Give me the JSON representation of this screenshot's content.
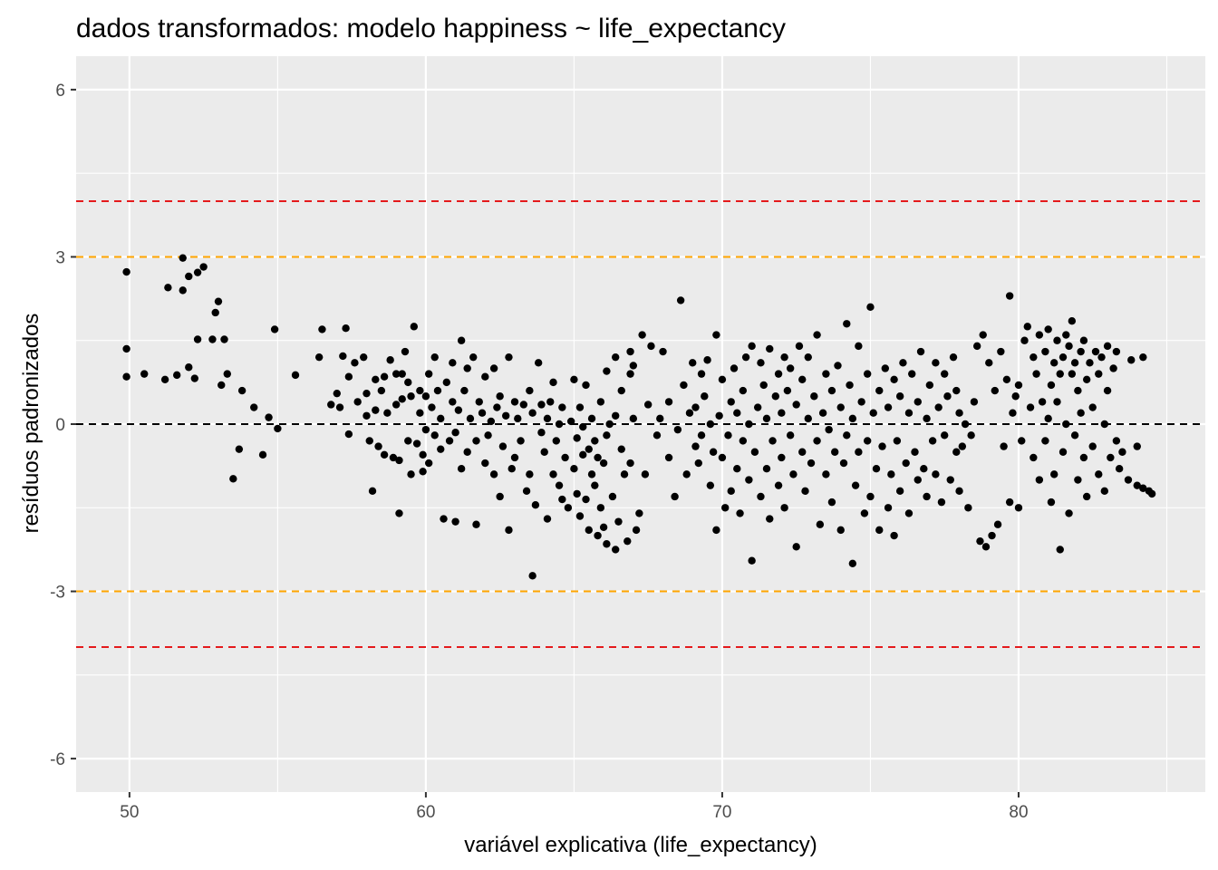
{
  "chart_data": {
    "type": "scatter",
    "title": "dados transformados: modelo happiness ~ life_expectancy",
    "xlabel": "variável explicativa (life_expectancy)",
    "ylabel": "resíduos padronizados",
    "xlim": [
      48.2,
      86.3
    ],
    "ylim": [
      -6.6,
      6.6
    ],
    "x_ticks": [
      50,
      60,
      70,
      80
    ],
    "x_tick_labels": [
      "50",
      "60",
      "70",
      "80"
    ],
    "x_minor_ticks": [
      55,
      65,
      75,
      85
    ],
    "y_ticks": [
      -6,
      -3,
      0,
      3,
      6
    ],
    "y_tick_labels": [
      "-6",
      "-3",
      "0",
      "3",
      "6"
    ],
    "y_minor_ticks": [
      -4.5,
      -1.5,
      1.5,
      4.5
    ],
    "grid": true,
    "reference_lines": [
      {
        "y": 4,
        "color": "#e41a1c",
        "style": "dashed"
      },
      {
        "y": 3,
        "color": "#ffa500",
        "style": "dashed"
      },
      {
        "y": 0,
        "color": "#000000",
        "style": "dashed"
      },
      {
        "y": -3,
        "color": "#ffa500",
        "style": "dashed"
      },
      {
        "y": -4,
        "color": "#e41a1c",
        "style": "dashed"
      }
    ],
    "point_color": "#000000",
    "panel_background": "#ebebeb",
    "points": [
      [
        49.9,
        2.73
      ],
      [
        49.9,
        1.35
      ],
      [
        49.9,
        0.85
      ],
      [
        50.5,
        0.9
      ],
      [
        51.2,
        0.8
      ],
      [
        51.3,
        2.45
      ],
      [
        51.6,
        0.88
      ],
      [
        51.8,
        2.98
      ],
      [
        51.8,
        2.4
      ],
      [
        52,
        2.65
      ],
      [
        52,
        1.02
      ],
      [
        52.2,
        0.82
      ],
      [
        52.3,
        1.52
      ],
      [
        52.3,
        2.72
      ],
      [
        52.5,
        2.82
      ],
      [
        52.8,
        1.52
      ],
      [
        52.9,
        2.0
      ],
      [
        53,
        2.2
      ],
      [
        53.1,
        0.7
      ],
      [
        53.2,
        1.52
      ],
      [
        53.3,
        0.9
      ],
      [
        53.5,
        -0.98
      ],
      [
        53.7,
        -0.45
      ],
      [
        53.8,
        0.6
      ],
      [
        54.2,
        0.3
      ],
      [
        54.5,
        -0.55
      ],
      [
        54.7,
        0.12
      ],
      [
        55,
        -0.08
      ],
      [
        55.6,
        0.88
      ],
      [
        54.9,
        1.7
      ],
      [
        56.4,
        1.2
      ],
      [
        56.5,
        1.7
      ],
      [
        56.8,
        0.35
      ],
      [
        57,
        0.55
      ],
      [
        57.1,
        0.3
      ],
      [
        57.3,
        1.72
      ],
      [
        57.2,
        1.22
      ],
      [
        57.4,
        0.85
      ],
      [
        57.4,
        -0.18
      ],
      [
        57.6,
        1.1
      ],
      [
        57.7,
        0.4
      ],
      [
        57.9,
        1.2
      ],
      [
        58,
        0.55
      ],
      [
        58,
        0.15
      ],
      [
        58.1,
        -0.3
      ],
      [
        58.2,
        -1.2
      ],
      [
        58.3,
        0.8
      ],
      [
        58.3,
        0.25
      ],
      [
        58.4,
        -0.4
      ],
      [
        58.5,
        0.6
      ],
      [
        58.6,
        -0.55
      ],
      [
        58.6,
        0.85
      ],
      [
        58.7,
        0.2
      ],
      [
        58.8,
        1.15
      ],
      [
        58.9,
        -0.6
      ],
      [
        59,
        0.9
      ],
      [
        59,
        0.35
      ],
      [
        59.1,
        -0.65
      ],
      [
        59.1,
        -1.6
      ],
      [
        59.2,
        0.45
      ],
      [
        59.2,
        0.9
      ],
      [
        59.3,
        1.3
      ],
      [
        59.4,
        0.75
      ],
      [
        59.4,
        -0.3
      ],
      [
        59.5,
        0.5
      ],
      [
        59.5,
        -0.9
      ],
      [
        59.6,
        1.75
      ],
      [
        59.7,
        -0.35
      ],
      [
        59.8,
        0.2
      ],
      [
        59.8,
        0.6
      ],
      [
        59.9,
        -0.55
      ],
      [
        59.9,
        -0.85
      ],
      [
        60,
        0.5
      ],
      [
        60,
        -0.1
      ],
      [
        60.1,
        0.9
      ],
      [
        60.1,
        -0.7
      ],
      [
        60.2,
        0.3
      ],
      [
        60.3,
        1.2
      ],
      [
        60.3,
        -0.2
      ],
      [
        60.4,
        0.6
      ],
      [
        60.5,
        -0.45
      ],
      [
        60.5,
        0.1
      ],
      [
        60.6,
        -1.7
      ],
      [
        60.7,
        0.75
      ],
      [
        60.8,
        -0.3
      ],
      [
        60.9,
        1.1
      ],
      [
        60.9,
        0.4
      ],
      [
        61,
        -1.75
      ],
      [
        61,
        -0.15
      ],
      [
        61.1,
        0.25
      ],
      [
        61.2,
        1.5
      ],
      [
        61.2,
        -0.8
      ],
      [
        61.3,
        0.6
      ],
      [
        61.4,
        1.0
      ],
      [
        61.4,
        -0.5
      ],
      [
        61.5,
        0.1
      ],
      [
        61.6,
        1.2
      ],
      [
        61.7,
        -1.8
      ],
      [
        61.7,
        -0.3
      ],
      [
        61.8,
        0.4
      ],
      [
        61.9,
        0.2
      ],
      [
        62,
        -0.7
      ],
      [
        62,
        0.85
      ],
      [
        62.1,
        -0.2
      ],
      [
        62.2,
        0.05
      ],
      [
        62.3,
        -0.9
      ],
      [
        62.3,
        1.0
      ],
      [
        62.4,
        0.3
      ],
      [
        62.5,
        -1.3
      ],
      [
        62.5,
        0.5
      ],
      [
        62.6,
        -0.4
      ],
      [
        62.7,
        0.15
      ],
      [
        62.8,
        -1.9
      ],
      [
        62.8,
        1.2
      ],
      [
        62.9,
        -0.8
      ],
      [
        63,
        0.4
      ],
      [
        63,
        -0.6
      ],
      [
        63.1,
        0.1
      ],
      [
        63.2,
        -0.3
      ],
      [
        63.3,
        0.35
      ],
      [
        63.4,
        -1.2
      ],
      [
        63.5,
        0.6
      ],
      [
        63.5,
        -0.9
      ],
      [
        63.6,
        0.2
      ],
      [
        63.7,
        -1.45
      ],
      [
        63.8,
        1.1
      ],
      [
        63.9,
        0.35
      ],
      [
        63.9,
        -0.15
      ],
      [
        64,
        -0.5
      ],
      [
        64.1,
        0.1
      ],
      [
        64.1,
        -1.7
      ],
      [
        64.2,
        0.4
      ],
      [
        64.3,
        -0.9
      ],
      [
        64.3,
        0.75
      ],
      [
        64.4,
        -0.3
      ],
      [
        64.5,
        -1.1
      ],
      [
        64.5,
        0.0
      ],
      [
        64.6,
        -1.35
      ],
      [
        64.6,
        0.3
      ],
      [
        64.7,
        -0.6
      ],
      [
        64.8,
        -1.5
      ],
      [
        64.9,
        0.05
      ],
      [
        63.6,
        -2.72
      ],
      [
        65,
        0.8
      ],
      [
        65,
        -0.8
      ],
      [
        65.1,
        -0.25
      ],
      [
        65.1,
        -1.25
      ],
      [
        65.2,
        -1.65
      ],
      [
        65.2,
        0.3
      ],
      [
        65.3,
        -0.55
      ],
      [
        65.3,
        -0.05
      ],
      [
        65.4,
        -1.35
      ],
      [
        65.4,
        0.7
      ],
      [
        65.5,
        -0.45
      ],
      [
        65.5,
        -1.9
      ],
      [
        65.6,
        -0.9
      ],
      [
        65.6,
        0.1
      ],
      [
        65.7,
        -0.3
      ],
      [
        65.7,
        -1.1
      ],
      [
        65.8,
        -0.6
      ],
      [
        65.8,
        -2.0
      ],
      [
        65.9,
        -1.5
      ],
      [
        65.9,
        0.4
      ],
      [
        66,
        -0.7
      ],
      [
        66,
        -1.85
      ],
      [
        66.1,
        -0.2
      ],
      [
        66.1,
        -2.15
      ],
      [
        66.2,
        0.0
      ],
      [
        66.3,
        -1.3
      ],
      [
        66.4,
        -2.25
      ],
      [
        66.4,
        0.15
      ],
      [
        66.5,
        -1.75
      ],
      [
        66.6,
        -0.45
      ],
      [
        66.7,
        -0.9
      ],
      [
        66.8,
        -2.1
      ],
      [
        66.9,
        -0.7
      ],
      [
        66.9,
        1.3
      ],
      [
        67,
        0.1
      ],
      [
        67.1,
        -1.9
      ],
      [
        67.2,
        -1.6
      ],
      [
        67.3,
        1.6
      ],
      [
        67.4,
        -0.9
      ],
      [
        67.5,
        0.35
      ],
      [
        66.1,
        0.95
      ],
      [
        66.4,
        1.2
      ],
      [
        66.6,
        0.6
      ],
      [
        66.9,
        0.9
      ],
      [
        67,
        1.05
      ],
      [
        67.6,
        1.4
      ],
      [
        67.8,
        -0.2
      ],
      [
        67.9,
        0.1
      ],
      [
        68,
        1.3
      ],
      [
        68.2,
        -0.6
      ],
      [
        68.2,
        0.4
      ],
      [
        68.4,
        -1.3
      ],
      [
        68.5,
        -0.1
      ],
      [
        68.6,
        2.22
      ],
      [
        68.7,
        0.7
      ],
      [
        68.8,
        -0.9
      ],
      [
        68.9,
        0.2
      ],
      [
        69,
        1.1
      ],
      [
        69.1,
        -0.4
      ],
      [
        69.1,
        0.3
      ],
      [
        69.2,
        -0.7
      ],
      [
        69.3,
        0.9
      ],
      [
        69.3,
        -0.2
      ],
      [
        69.4,
        0.5
      ],
      [
        69.5,
        1.15
      ],
      [
        69.6,
        -1.1
      ],
      [
        69.6,
        0.0
      ],
      [
        69.7,
        -0.5
      ],
      [
        69.8,
        1.6
      ],
      [
        69.8,
        -1.9
      ],
      [
        69.9,
        0.15
      ],
      [
        70,
        -0.6
      ],
      [
        70,
        0.8
      ],
      [
        70.1,
        -1.5
      ],
      [
        70.2,
        -0.2
      ],
      [
        70.3,
        0.4
      ],
      [
        70.3,
        -1.2
      ],
      [
        70.4,
        1.0
      ],
      [
        70.5,
        -0.8
      ],
      [
        70.5,
        0.2
      ],
      [
        70.6,
        -1.6
      ],
      [
        70.7,
        0.6
      ],
      [
        70.7,
        -0.3
      ],
      [
        70.8,
        1.2
      ],
      [
        70.9,
        -1.0
      ],
      [
        70.9,
        0.0
      ],
      [
        71,
        -2.45
      ],
      [
        71,
        1.4
      ],
      [
        71.1,
        -0.5
      ],
      [
        71.2,
        0.3
      ],
      [
        71.3,
        -1.3
      ],
      [
        71.3,
        1.1
      ],
      [
        71.4,
        0.7
      ],
      [
        71.5,
        -0.8
      ],
      [
        71.5,
        0.1
      ],
      [
        71.6,
        -1.7
      ],
      [
        71.6,
        1.35
      ],
      [
        71.7,
        -0.3
      ],
      [
        71.8,
        0.5
      ],
      [
        71.9,
        -1.1
      ],
      [
        71.9,
        0.9
      ],
      [
        72,
        -0.6
      ],
      [
        72,
        0.2
      ],
      [
        72.1,
        1.2
      ],
      [
        72.1,
        -1.5
      ],
      [
        72.2,
        0.6
      ],
      [
        72.3,
        -0.2
      ],
      [
        72.3,
        1.0
      ],
      [
        72.4,
        -0.9
      ],
      [
        72.5,
        -2.2
      ],
      [
        72.5,
        0.35
      ],
      [
        72.6,
        1.4
      ],
      [
        72.7,
        -0.5
      ],
      [
        72.7,
        0.8
      ],
      [
        72.8,
        -1.2
      ],
      [
        72.9,
        0.1
      ],
      [
        72.9,
        1.2
      ],
      [
        73,
        -0.7
      ],
      [
        73.1,
        0.5
      ],
      [
        73.2,
        -0.3
      ],
      [
        73.2,
        1.6
      ],
      [
        73.3,
        -1.8
      ],
      [
        73.4,
        0.2
      ],
      [
        73.5,
        -0.9
      ],
      [
        73.5,
        0.9
      ],
      [
        73.6,
        -0.1
      ],
      [
        73.7,
        0.6
      ],
      [
        73.7,
        -1.4
      ],
      [
        73.8,
        -0.5
      ],
      [
        73.9,
        1.05
      ],
      [
        74,
        0.3
      ],
      [
        74,
        -1.9
      ],
      [
        74.1,
        -0.7
      ],
      [
        74.2,
        1.8
      ],
      [
        74.2,
        -0.2
      ],
      [
        74.3,
        0.7
      ],
      [
        74.4,
        -2.5
      ],
      [
        74.4,
        0.1
      ],
      [
        74.5,
        -1.1
      ],
      [
        74.6,
        1.4
      ],
      [
        74.6,
        -0.5
      ],
      [
        74.7,
        0.4
      ],
      [
        74.8,
        -1.6
      ],
      [
        74.9,
        0.9
      ],
      [
        74.9,
        -0.3
      ],
      [
        75,
        2.1
      ],
      [
        75,
        -1.3
      ],
      [
        75.1,
        0.2
      ],
      [
        75.2,
        -0.8
      ],
      [
        75.3,
        -1.9
      ],
      [
        75.3,
        0.6
      ],
      [
        75.4,
        -0.4
      ],
      [
        75.5,
        1.0
      ],
      [
        75.6,
        -1.5
      ],
      [
        75.6,
        0.3
      ],
      [
        75.7,
        -0.9
      ],
      [
        75.8,
        0.8
      ],
      [
        75.8,
        -2.0
      ],
      [
        75.9,
        -0.3
      ],
      [
        76,
        0.5
      ],
      [
        76,
        -1.2
      ],
      [
        76.1,
        1.1
      ],
      [
        76.2,
        -0.7
      ],
      [
        76.3,
        0.2
      ],
      [
        76.3,
        -1.6
      ],
      [
        76.4,
        0.9
      ],
      [
        76.5,
        -0.5
      ],
      [
        76.6,
        -1.0
      ],
      [
        76.6,
        0.4
      ],
      [
        76.7,
        1.3
      ],
      [
        76.8,
        -0.8
      ],
      [
        76.9,
        0.1
      ],
      [
        76.9,
        -1.3
      ],
      [
        77,
        0.7
      ],
      [
        77.1,
        -0.3
      ],
      [
        77.2,
        1.1
      ],
      [
        77.2,
        -0.9
      ],
      [
        77.3,
        0.3
      ],
      [
        77.4,
        -1.4
      ],
      [
        77.5,
        0.9
      ],
      [
        77.5,
        -0.2
      ],
      [
        77.6,
        0.5
      ],
      [
        77.7,
        -1.0
      ],
      [
        77.8,
        1.2
      ],
      [
        77.9,
        -0.5
      ],
      [
        77.9,
        0.6
      ],
      [
        78,
        -1.2
      ],
      [
        78,
        0.2
      ],
      [
        78.1,
        -0.4
      ],
      [
        78.2,
        0.0
      ],
      [
        78.3,
        -1.5
      ],
      [
        78.4,
        -0.2
      ],
      [
        78.5,
        0.4
      ],
      [
        78.6,
        1.4
      ],
      [
        78.7,
        -2.1
      ],
      [
        78.8,
        1.6
      ],
      [
        78.9,
        -2.2
      ],
      [
        79,
        1.1
      ],
      [
        79.1,
        -2.0
      ],
      [
        79.2,
        0.6
      ],
      [
        79.3,
        -1.8
      ],
      [
        79.4,
        1.3
      ],
      [
        79.5,
        -0.4
      ],
      [
        79.6,
        0.8
      ],
      [
        79.7,
        2.3
      ],
      [
        79.7,
        -1.4
      ],
      [
        79.8,
        0.2
      ],
      [
        79.9,
        0.5
      ],
      [
        80,
        -1.5
      ],
      [
        80,
        0.7
      ],
      [
        80.1,
        -0.3
      ],
      [
        80.2,
        1.5
      ],
      [
        80.3,
        1.75
      ],
      [
        80.4,
        0.3
      ],
      [
        80.5,
        1.2
      ],
      [
        80.5,
        -0.6
      ],
      [
        80.6,
        0.9
      ],
      [
        80.7,
        1.6
      ],
      [
        80.7,
        -1.0
      ],
      [
        80.8,
        0.4
      ],
      [
        80.9,
        1.3
      ],
      [
        80.9,
        -0.3
      ],
      [
        81,
        1.7
      ],
      [
        81,
        0.1
      ],
      [
        81.1,
        -1.4
      ],
      [
        81.1,
        0.7
      ],
      [
        81.2,
        1.1
      ],
      [
        81.2,
        -0.9
      ],
      [
        81.3,
        1.5
      ],
      [
        81.3,
        0.4
      ],
      [
        81.4,
        -2.25
      ],
      [
        81.4,
        0.9
      ],
      [
        81.5,
        1.2
      ],
      [
        81.5,
        -0.5
      ],
      [
        81.6,
        1.6
      ],
      [
        81.6,
        0.0
      ],
      [
        81.7,
        1.4
      ],
      [
        81.7,
        -1.6
      ],
      [
        81.8,
        0.9
      ],
      [
        81.8,
        1.85
      ],
      [
        81.9,
        -0.2
      ],
      [
        81.9,
        1.1
      ],
      [
        82,
        0.6
      ],
      [
        82,
        -1.0
      ],
      [
        82.1,
        1.3
      ],
      [
        82.1,
        0.2
      ],
      [
        82.2,
        -0.6
      ],
      [
        82.2,
        1.5
      ],
      [
        82.3,
        0.8
      ],
      [
        82.3,
        -1.3
      ],
      [
        82.4,
        1.1
      ],
      [
        82.5,
        0.3
      ],
      [
        82.5,
        -0.4
      ],
      [
        82.6,
        1.3
      ],
      [
        82.7,
        0.9
      ],
      [
        82.7,
        -0.9
      ],
      [
        82.8,
        1.2
      ],
      [
        82.9,
        0.0
      ],
      [
        82.9,
        -1.2
      ],
      [
        83,
        1.4
      ],
      [
        83,
        0.6
      ],
      [
        83.1,
        -0.6
      ],
      [
        83.2,
        1.0
      ],
      [
        83.3,
        -0.3
      ],
      [
        83.3,
        1.3
      ],
      [
        83.4,
        -0.8
      ],
      [
        83.5,
        -0.5
      ],
      [
        83.7,
        -1.0
      ],
      [
        83.8,
        1.15
      ],
      [
        84,
        -1.1
      ],
      [
        84.2,
        1.2
      ],
      [
        84.2,
        -1.15
      ],
      [
        84.4,
        -1.2
      ],
      [
        84.5,
        -1.25
      ],
      [
        84.0,
        -0.4
      ]
    ]
  }
}
